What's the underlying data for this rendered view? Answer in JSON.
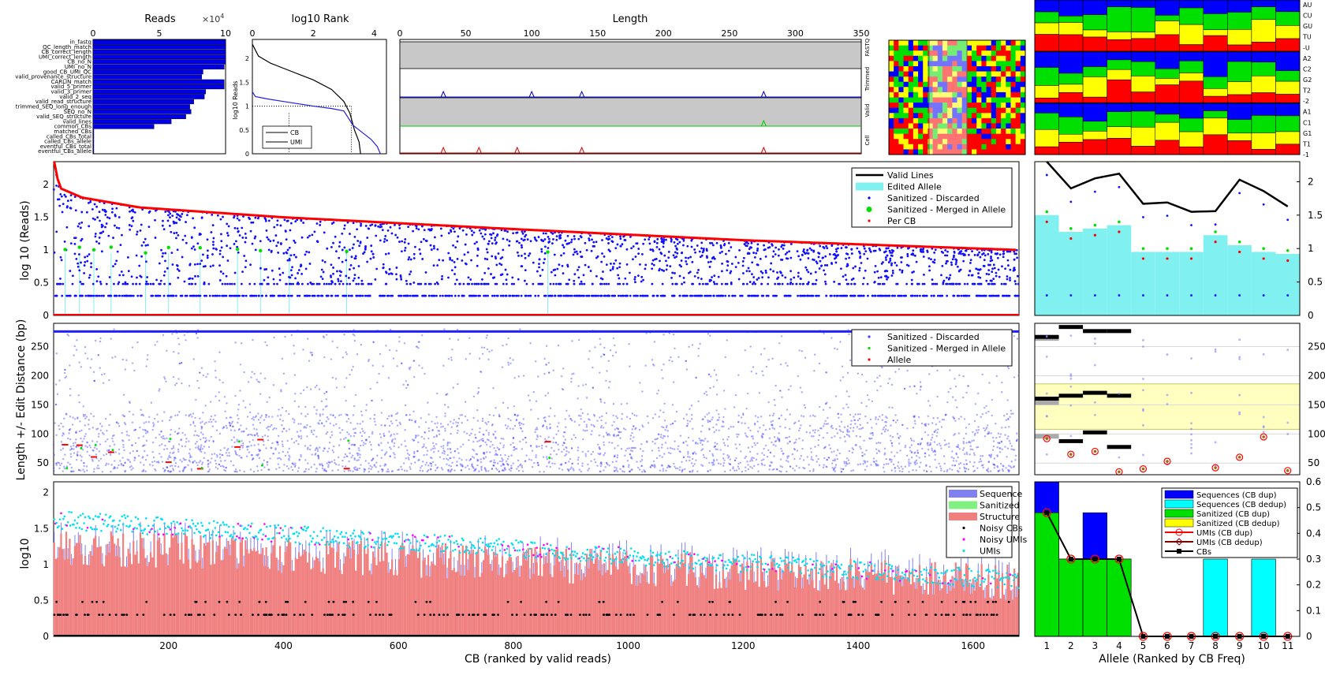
{
  "chart_data": [
    {
      "id": "reads_filter",
      "type": "bar",
      "orientation": "horizontal",
      "title": "Reads",
      "exponent": "×10",
      "exponent_power": "4",
      "xlim": [
        0,
        10
      ],
      "xticks": [
        "0",
        "5",
        "10"
      ],
      "categories": [
        "in_fastq",
        "QC_length_match",
        "CB_correct_length",
        "UMI_correct_length",
        "CB_no_N",
        "UMI_no_N",
        "good_CB_UMI_QC",
        "valid_provenance_structure",
        "CARLIN_match",
        "valid_5_primer",
        "valid_3_primer",
        "valid_2_seq",
        "valid_read_structure",
        "trimmed_SEQ_long_enough",
        "SEQ_no_N",
        "valid_SEQ_structure",
        "valid_lines",
        "common_CBs",
        "matched_CBs",
        "called_CBs_total",
        "called_CBs_allele",
        "eventful_CBs_total",
        "eventful_CBs_allele"
      ],
      "values": [
        10,
        10,
        10,
        10,
        10,
        9.9,
        8.3,
        8.2,
        9.9,
        9.9,
        8.5,
        8.4,
        7.6,
        7.3,
        7.4,
        7.0,
        5.9,
        4.6,
        0.05,
        0.05,
        0.05,
        0.05,
        0.05
      ]
    },
    {
      "id": "log10_rank",
      "type": "line",
      "title": "log10 Rank",
      "ylabel": "log10 Reads",
      "xlim": [
        0,
        4.4
      ],
      "ylim": [
        0,
        2.4
      ],
      "xticks": [
        "0",
        "2",
        "4"
      ],
      "yticks": [
        "0",
        "0.5",
        "1",
        "1.5",
        "2"
      ],
      "series": [
        {
          "name": "CB",
          "x": [
            0,
            0.2,
            0.6,
            1.0,
            1.6,
            2.0,
            2.6,
            3.0,
            3.2,
            3.35,
            3.5,
            3.55
          ],
          "y": [
            2.3,
            2.05,
            1.9,
            1.8,
            1.65,
            1.55,
            1.35,
            1.1,
            0.85,
            0.5,
            0.25,
            0
          ]
        },
        {
          "name": "UMI",
          "x": [
            0,
            0.1,
            0.5,
            1.0,
            1.5,
            2.0,
            2.6,
            3.0,
            3.3,
            3.6,
            3.9,
            4.1,
            4.2
          ],
          "y": [
            1.3,
            1.2,
            1.15,
            1.1,
            1.05,
            1.0,
            0.95,
            0.9,
            0.6,
            0.45,
            0.3,
            0.15,
            0
          ]
        }
      ],
      "dotted_guides": [
        {
          "x": 3.25,
          "y": 1.0
        }
      ],
      "legend_position": "bottom-left"
    },
    {
      "id": "length_hist",
      "type": "area",
      "title": "Length",
      "xlim": [
        0,
        350
      ],
      "xticks": [
        "0",
        "50",
        "100",
        "150",
        "200",
        "250",
        "300",
        "350"
      ],
      "row_labels": [
        "FASTQ",
        "Trimmed",
        "Valid",
        "Cell"
      ],
      "peaks": [
        {
          "row": "Trimmed",
          "color": "#0000c8",
          "x": [
            33,
            100,
            138,
            276
          ]
        },
        {
          "row": "Valid",
          "color": "#00c800",
          "x": [
            276
          ]
        },
        {
          "row": "Cell",
          "color": "#dc0000",
          "x": [
            33,
            60,
            89,
            138,
            276
          ]
        }
      ]
    },
    {
      "id": "base_composition_small",
      "type": "heatmap",
      "palette": [
        "#0000ff",
        "#00e000",
        "#ffff00",
        "#ff0000"
      ]
    },
    {
      "id": "allele_composition",
      "type": "heatmap",
      "row_labels": [
        "AU",
        "CU",
        "GU",
        "TU",
        "-U",
        "A2",
        "C2",
        "G2",
        "T2",
        "-2",
        "A1",
        "C1",
        "G1",
        "T1",
        "-1"
      ],
      "n_alleles": 11,
      "palette": [
        "#0000ff",
        "#00e000",
        "#ffff00",
        "#ff0000"
      ]
    },
    {
      "id": "reads_per_cb",
      "type": "scatter",
      "ylabel": "log 10 (Reads)",
      "xlim": [
        0,
        1680
      ],
      "ylim": [
        0,
        2.35
      ],
      "yticks": [
        "0",
        "0.5",
        "1",
        "1.5",
        "2"
      ],
      "series": [
        {
          "name": "Valid Lines",
          "color": "#000000"
        },
        {
          "name": "Edited Allele",
          "color": "#80f0f0"
        },
        {
          "name": "Sanitized - Discarded",
          "color": "#0000ff"
        },
        {
          "name": "Sanitized - Merged in Allele",
          "color": "#00e000"
        },
        {
          "name": "Per CB",
          "color": "#ff0000"
        }
      ],
      "per_cb_curve": {
        "x": [
          1,
          10,
          50,
          150,
          400,
          800,
          1200,
          1680
        ],
        "y": [
          2.35,
          1.95,
          1.8,
          1.65,
          1.5,
          1.32,
          1.15,
          1.0
        ]
      }
    },
    {
      "id": "length_vs_cb",
      "type": "scatter",
      "ylabel": "Length +/- Edit Distance (bp)",
      "xlim": [
        0,
        1680
      ],
      "ylim": [
        30,
        290
      ],
      "yticks": [
        "50",
        "100",
        "150",
        "200",
        "250"
      ],
      "series": [
        {
          "name": "Sanitized - Discarded",
          "color": "#4040ff"
        },
        {
          "name": "Sanitized - Merged in Allele",
          "color": "#00e000"
        },
        {
          "name": "Allele",
          "color": "#ff0000"
        }
      ]
    },
    {
      "id": "umi_per_cb",
      "type": "bar",
      "ylabel": "log10",
      "xlabel": "CB (ranked by valid reads)",
      "xlim": [
        0,
        1680
      ],
      "ylim": [
        0,
        2.15
      ],
      "xticks": [
        "200",
        "400",
        "600",
        "800",
        "1000",
        "1200",
        "1400",
        "1600"
      ],
      "yticks": [
        "0",
        "0.5",
        "1",
        "1.5",
        "2"
      ],
      "series": [
        {
          "name": "Sequence",
          "color": "#8080f0"
        },
        {
          "name": "Sanitized",
          "color": "#80f080"
        },
        {
          "name": "Structure",
          "color": "#f08080"
        },
        {
          "name": "Noisy CBs",
          "color": "#000000"
        },
        {
          "name": "Noisy UMIs",
          "color": "#ff00ff"
        },
        {
          "name": "UMIs",
          "color": "#00e0f0"
        }
      ]
    },
    {
      "id": "allele_reads",
      "type": "bar",
      "ylim": [
        0,
        2.3
      ],
      "yticks": [
        "0",
        "0.5",
        "1",
        "1.5",
        "2"
      ],
      "categories": [
        "1",
        "2",
        "3",
        "4",
        "5",
        "6",
        "7",
        "8",
        "9",
        "10",
        "11"
      ],
      "valid_lines": [
        2.3,
        1.9,
        2.05,
        2.12,
        1.67,
        1.69,
        1.55,
        1.56,
        2.03,
        1.86,
        1.63
      ],
      "edited_allele": [
        1.5,
        1.25,
        1.3,
        1.35,
        0.95,
        0.95,
        0.95,
        1.2,
        1.05,
        0.95,
        0.92
      ]
    },
    {
      "id": "allele_length",
      "type": "scatter",
      "ylim": [
        30,
        290
      ],
      "yticks": [
        "50",
        "100",
        "150",
        "200",
        "250"
      ],
      "categories": [
        "1",
        "2",
        "3",
        "4",
        "5",
        "6",
        "7",
        "8",
        "9",
        "10",
        "11"
      ],
      "allele_lengths": [
        92,
        65,
        70,
        35,
        40,
        53,
        0,
        42,
        60,
        95,
        37
      ],
      "highlight_range": [
        108,
        186
      ]
    },
    {
      "id": "allele_cb_freq",
      "type": "bar",
      "xlabel": "Allele (Ranked by CB Freq)",
      "xlim": [
        0.5,
        11.5
      ],
      "ylim": [
        0,
        0.6
      ],
      "yticks": [
        "0",
        "0.1",
        "0.2",
        "0.3",
        "0.4",
        "0.5",
        "0.6"
      ],
      "categories": [
        "1",
        "2",
        "3",
        "4",
        "5",
        "6",
        "7",
        "8",
        "9",
        "10",
        "11"
      ],
      "series": [
        {
          "name": "Sequences (CB dup)",
          "color": "#0000ff",
          "values": [
            0.6,
            0.3,
            0.48,
            0.3,
            0,
            0,
            0,
            0,
            0,
            0,
            0
          ]
        },
        {
          "name": "Sequences (CB dedup)",
          "color": "#00ffff",
          "values": [
            0,
            0,
            0,
            0,
            0,
            0,
            0,
            0.3,
            0,
            0.3,
            0
          ]
        },
        {
          "name": "Sanitized (CB dup)",
          "color": "#00e000",
          "values": [
            0.48,
            0.3,
            0.3,
            0.3,
            0,
            0,
            0,
            0,
            0,
            0,
            0
          ]
        },
        {
          "name": "Sanitized (CB dedup)",
          "color": "#ffff00",
          "values": [
            0,
            0,
            0,
            0,
            0,
            0,
            0,
            0,
            0,
            0,
            0
          ]
        },
        {
          "name": "UMIs (CB dup)",
          "color": "#ff0000",
          "values": [
            0.48,
            0.3,
            0.3,
            0.3,
            0,
            0,
            0,
            0,
            0,
            0,
            0
          ]
        },
        {
          "name": "UMIs (CB dedup)",
          "color": "#800000",
          "values": [
            0.48,
            0.3,
            0.3,
            0.3,
            0,
            0,
            0,
            0,
            0,
            0,
            0
          ]
        },
        {
          "name": "CBs",
          "color": "#000000",
          "values": [
            0.48,
            0.3,
            0.3,
            0.3,
            0,
            0,
            0,
            0,
            0,
            0,
            0
          ]
        }
      ]
    }
  ]
}
